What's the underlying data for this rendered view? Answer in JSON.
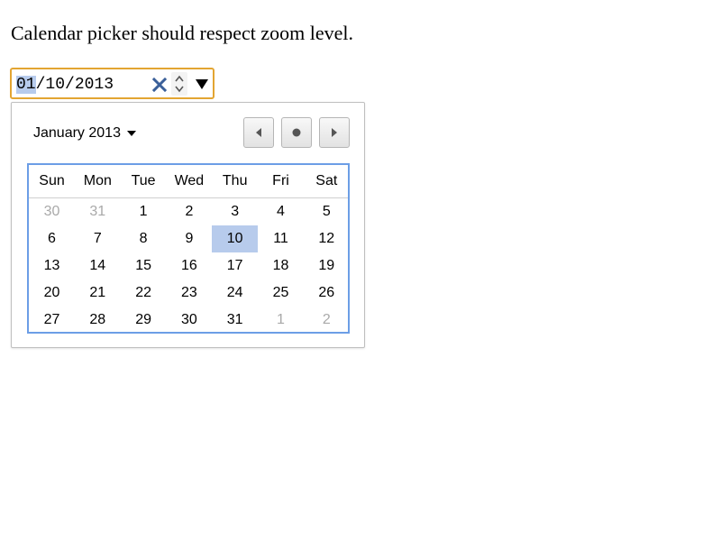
{
  "page": {
    "title": "Calendar picker should respect zoom level."
  },
  "date_input": {
    "month": "01",
    "separator1": "/",
    "day": "10",
    "separator2": "/",
    "year": "2013",
    "clear_icon": "close-x-icon",
    "spin_icon": "up-down-spinner-icon",
    "dropdown_icon": "triangle-down-icon",
    "colors": {
      "focus_border": "#e3a532",
      "selected_segment": "#b7cbec",
      "clear_icon": "#3a5f99"
    }
  },
  "calendar": {
    "month_label": "January 2013",
    "month_dropdown_icon": "caret-down-icon",
    "nav": {
      "prev_icon": "triangle-left-icon",
      "today_icon": "dot-icon",
      "next_icon": "triangle-right-icon"
    },
    "weekdays": [
      "Sun",
      "Mon",
      "Tue",
      "Wed",
      "Thu",
      "Fri",
      "Sat"
    ],
    "weeks": [
      [
        {
          "label": "30",
          "other": true
        },
        {
          "label": "31",
          "other": true
        },
        {
          "label": "1",
          "other": false
        },
        {
          "label": "2",
          "other": false
        },
        {
          "label": "3",
          "other": false
        },
        {
          "label": "4",
          "other": false
        },
        {
          "label": "5",
          "other": false
        }
      ],
      [
        {
          "label": "6",
          "other": false
        },
        {
          "label": "7",
          "other": false
        },
        {
          "label": "8",
          "other": false
        },
        {
          "label": "9",
          "other": false
        },
        {
          "label": "10",
          "other": false,
          "selected": true
        },
        {
          "label": "11",
          "other": false
        },
        {
          "label": "12",
          "other": false
        }
      ],
      [
        {
          "label": "13",
          "other": false
        },
        {
          "label": "14",
          "other": false
        },
        {
          "label": "15",
          "other": false
        },
        {
          "label": "16",
          "other": false
        },
        {
          "label": "17",
          "other": false
        },
        {
          "label": "18",
          "other": false
        },
        {
          "label": "19",
          "other": false
        }
      ],
      [
        {
          "label": "20",
          "other": false
        },
        {
          "label": "21",
          "other": false
        },
        {
          "label": "22",
          "other": false
        },
        {
          "label": "23",
          "other": false
        },
        {
          "label": "24",
          "other": false
        },
        {
          "label": "25",
          "other": false
        },
        {
          "label": "26",
          "other": false
        }
      ],
      [
        {
          "label": "27",
          "other": false
        },
        {
          "label": "28",
          "other": false
        },
        {
          "label": "29",
          "other": false
        },
        {
          "label": "30",
          "other": false
        },
        {
          "label": "31",
          "other": false
        },
        {
          "label": "1",
          "other": true
        },
        {
          "label": "2",
          "other": true
        }
      ]
    ],
    "colors": {
      "grid_border": "#6c9ee6",
      "selected_day": "#b7cbec",
      "other_month_text": "#a9a9a9"
    }
  }
}
